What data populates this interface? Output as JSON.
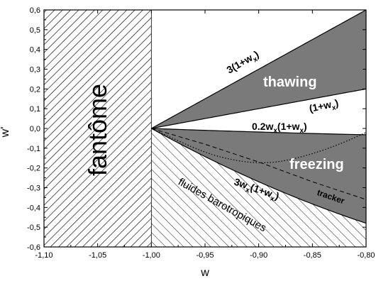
{
  "chart_data": {
    "type": "area",
    "title": "",
    "xlabel": "w",
    "ylabel": "w'",
    "xlim": [
      -1.1,
      -0.8
    ],
    "ylim": [
      -0.6,
      0.6
    ],
    "x_ticks": [
      "-1,10",
      "-1,05",
      "-1,00",
      "-0,95",
      "-0,90",
      "-0,85",
      "-0,80"
    ],
    "y_ticks": [
      "-0,6",
      "-0,5",
      "-0,4",
      "-0,3",
      "-0,2",
      "-0,1",
      "0,0",
      "0,1",
      "0,2",
      "0,3",
      "0,4",
      "0,5",
      "0,6"
    ],
    "grid": false,
    "curves": [
      {
        "label": "3(1+w_x)",
        "coef": 3.0
      },
      {
        "label": "(1+w_x)",
        "coef": 1.0
      },
      {
        "label": "0.2w_x(1+w_x)",
        "coef": 0.2,
        "times_w": true
      },
      {
        "label": "3w_x(1+w_x)",
        "coef": 3.0,
        "times_w": true
      }
    ],
    "regions": [
      {
        "label": "fantôme",
        "x_range": [
          -1.1,
          -1.0
        ],
        "style": "hatched"
      },
      {
        "label": "thawing",
        "between": [
          "(1+w_x)",
          "3(1+w_x)"
        ],
        "style": "filled"
      },
      {
        "label": "freezing",
        "between": [
          "3w_x(1+w_x)",
          "0.2w_x(1+w_x)"
        ],
        "style": "filled"
      },
      {
        "label": "fluides barotropiques",
        "below": "3w_x(1+w_x)",
        "style": "hatched"
      }
    ],
    "tracker": {
      "label": "tracker",
      "points": [
        [
          -1.0,
          0.0
        ],
        [
          -0.95,
          -0.08
        ],
        [
          -0.9,
          -0.17
        ],
        [
          -0.85,
          -0.27
        ],
        [
          -0.8,
          -0.36
        ]
      ]
    },
    "dotted_curve": {
      "points": [
        [
          -1.0,
          0.0
        ],
        [
          -0.95,
          -0.125
        ],
        [
          -0.92,
          -0.165
        ],
        [
          -0.9,
          -0.175
        ],
        [
          -0.88,
          -0.17
        ],
        [
          -0.85,
          -0.13
        ],
        [
          -0.82,
          -0.07
        ],
        [
          -0.8,
          -0.02
        ]
      ]
    },
    "labels": {
      "thawing": "thawing",
      "freezing": "freezing",
      "fantome": "fantôme",
      "fluides": "fluides barotropiques",
      "tracker": "tracker"
    }
  }
}
